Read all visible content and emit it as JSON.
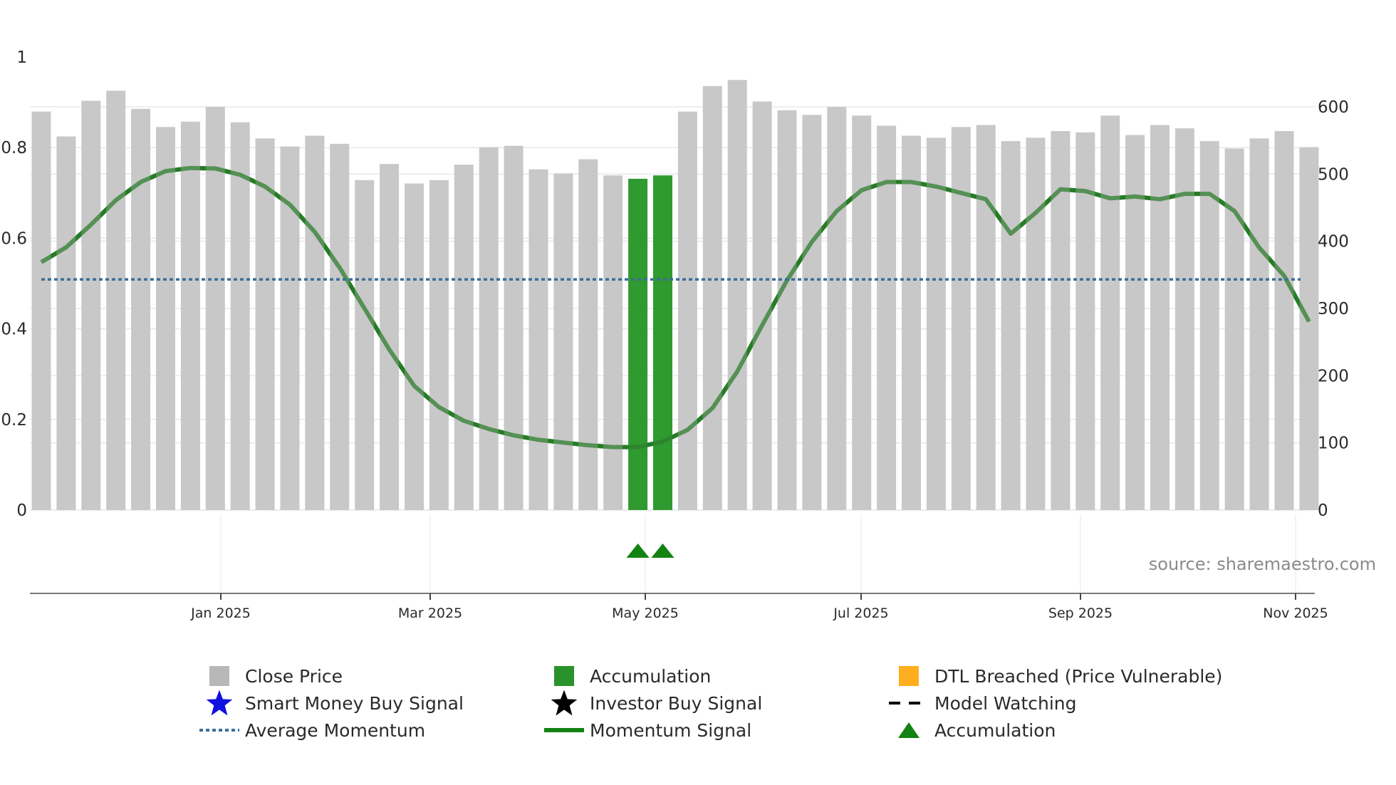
{
  "chart_data": {
    "type": "bar",
    "title": "",
    "source": "source: sharemaestro.com",
    "x_tick_labels": [
      "Jan 2025",
      "Mar 2025",
      "May 2025",
      "Jul 2025",
      "Sep 2025",
      "Nov 2025"
    ],
    "left_axis": {
      "ticks": [
        "0",
        "0.2",
        "0.4",
        "0.6",
        "0.8",
        "1"
      ],
      "ylim": [
        0,
        1
      ],
      "label": ""
    },
    "right_axis": {
      "ticks": [
        "0",
        "100",
        "200",
        "300",
        "400",
        "500",
        "600"
      ],
      "ylim": [
        0,
        673
      ],
      "label": ""
    },
    "series": [
      {
        "name": "Close Price",
        "type": "bar",
        "axis": "right",
        "color": "#c8c8c8",
        "values": [
          593,
          556,
          609,
          624,
          597,
          570,
          578,
          600,
          577,
          553,
          541,
          557,
          545,
          491,
          515,
          486,
          491,
          514,
          540,
          542,
          507,
          501,
          522,
          498,
          493,
          498,
          593,
          631,
          640,
          608,
          595,
          588,
          600,
          587,
          572,
          557,
          554,
          570,
          573,
          549,
          554,
          564,
          562,
          587,
          558,
          573,
          568,
          549,
          538,
          553,
          564,
          540
        ]
      },
      {
        "name": "Accumulation",
        "type": "bar-highlight",
        "color": "#2f9a2f",
        "bar_indices": [
          24,
          25
        ]
      },
      {
        "name": "Momentum Signal",
        "type": "line",
        "axis": "left",
        "color": "#4a8a4a",
        "values": [
          0.547,
          0.58,
          0.63,
          0.684,
          0.724,
          0.748,
          0.755,
          0.754,
          0.74,
          0.714,
          0.674,
          0.614,
          0.535,
          0.445,
          0.354,
          0.274,
          0.227,
          0.197,
          0.179,
          0.165,
          0.155,
          0.149,
          0.143,
          0.139,
          0.139,
          0.151,
          0.177,
          0.225,
          0.306,
          0.408,
          0.507,
          0.592,
          0.66,
          0.706,
          0.724,
          0.724,
          0.714,
          0.7,
          0.686,
          0.61,
          0.656,
          0.708,
          0.704,
          0.688,
          0.692,
          0.686,
          0.698,
          0.698,
          0.66,
          0.579,
          0.517,
          0.416
        ]
      },
      {
        "name": "Average Momentum",
        "type": "hline",
        "axis": "left",
        "color": "#3a6f9a",
        "value": 0.509
      },
      {
        "name": "Accumulation",
        "type": "marker-triangle",
        "color": "#128212",
        "bar_indices": [
          24,
          25
        ]
      }
    ],
    "legend": [
      {
        "label": "Close Price",
        "symbol": "square",
        "color": "#b8b8b8"
      },
      {
        "label": "Accumulation",
        "symbol": "square",
        "color": "#2a922a"
      },
      {
        "label": "DTL Breached (Price Vulnerable)",
        "symbol": "square",
        "color": "#ffae1f"
      },
      {
        "label": "Smart Money Buy Signal",
        "symbol": "star",
        "color": "#1010e0"
      },
      {
        "label": "Investor Buy Signal",
        "symbol": "star",
        "color": "#000000"
      },
      {
        "label": "Model Watching",
        "symbol": "dashed-line",
        "color": "#000000"
      },
      {
        "label": "Average Momentum",
        "symbol": "dotted-line",
        "color": "#3a6f9a"
      },
      {
        "label": "Momentum Signal",
        "symbol": "solid-line",
        "color": "#128212"
      },
      {
        "label": "Accumulation",
        "symbol": "triangle",
        "color": "#128212"
      }
    ],
    "legend_position": "bottom",
    "grid": true
  }
}
